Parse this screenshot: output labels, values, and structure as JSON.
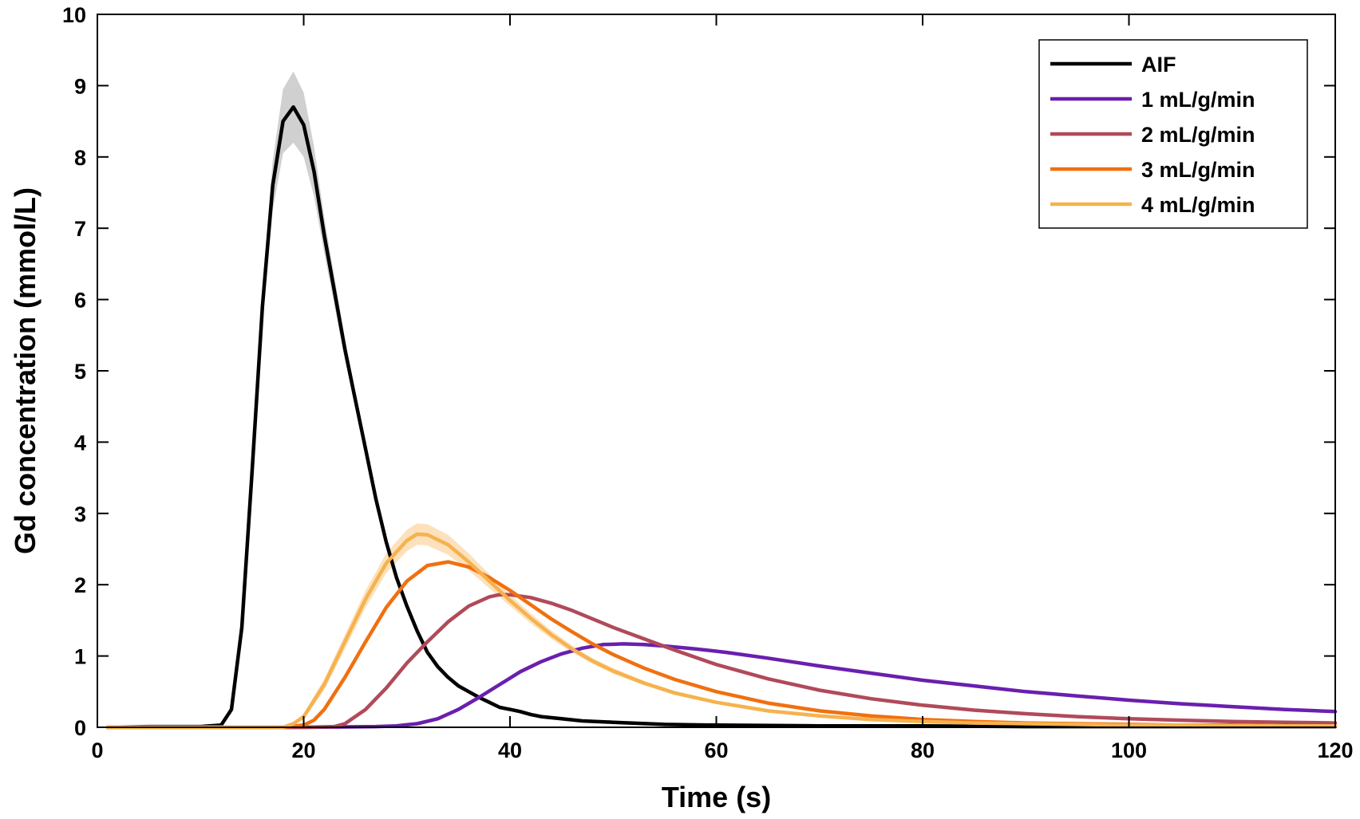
{
  "chart_data": {
    "type": "line",
    "title": "",
    "xlabel": "Time (s)",
    "ylabel": "Gd concentration (mmol/L)",
    "xlim": [
      0,
      120
    ],
    "ylim": [
      0,
      10
    ],
    "xticks": [
      0,
      20,
      40,
      60,
      80,
      100,
      120
    ],
    "yticks": [
      0,
      1,
      2,
      3,
      4,
      5,
      6,
      7,
      8,
      9,
      10
    ],
    "xtick_labels": [
      "0",
      "20",
      "40",
      "60",
      "80",
      "100",
      "120"
    ],
    "ytick_labels": [
      "0",
      "1",
      "2",
      "3",
      "4",
      "5",
      "6",
      "7",
      "8",
      "9",
      "10"
    ],
    "grid": false,
    "legend_position": "top-right",
    "series": [
      {
        "name": "AIF",
        "color": "#000000",
        "band_color": "#c8c8c8",
        "x": [
          1,
          5,
          10,
          12,
          13,
          14,
          15,
          16,
          17,
          18,
          19,
          20,
          21,
          22,
          23,
          24,
          25,
          26,
          27,
          28,
          29,
          30,
          31,
          32,
          33,
          34,
          35,
          36,
          37,
          38,
          39,
          40,
          41,
          42,
          43,
          45,
          47,
          50,
          55,
          60,
          70,
          80,
          90,
          100,
          110,
          120
        ],
        "y": [
          0,
          0.01,
          0.01,
          0.03,
          0.25,
          1.4,
          3.6,
          5.9,
          7.6,
          8.5,
          8.7,
          8.45,
          7.8,
          6.9,
          6.1,
          5.3,
          4.6,
          3.9,
          3.2,
          2.6,
          2.1,
          1.7,
          1.35,
          1.05,
          0.85,
          0.7,
          0.58,
          0.5,
          0.42,
          0.35,
          0.28,
          0.25,
          0.22,
          0.18,
          0.15,
          0.12,
          0.09,
          0.07,
          0.04,
          0.03,
          0.02,
          0.02,
          0.01,
          0.01,
          0.01,
          0.01
        ],
        "band": [
          0,
          0,
          0,
          0.02,
          0.05,
          0.1,
          0.15,
          0.25,
          0.35,
          0.45,
          0.5,
          0.45,
          0.35,
          0.25,
          0.2,
          0.15,
          0.12,
          0.1,
          0.08,
          0.06,
          0.05,
          0.04,
          0.03,
          0.03,
          0.02,
          0.02,
          0.02,
          0.02,
          0.02,
          0.02,
          0.02,
          0.02,
          0.02,
          0.02,
          0.02,
          0.02,
          0.02,
          0.02,
          0.02,
          0.02,
          0.02,
          0.02,
          0.02,
          0.02,
          0.02,
          0.02
        ]
      },
      {
        "name": "1 mL/g/min",
        "color": "#6a1fae",
        "x": [
          1,
          20,
          27,
          29,
          31,
          33,
          35,
          37,
          39,
          41,
          43,
          45,
          47,
          49,
          51,
          53,
          55,
          58,
          61,
          65,
          70,
          75,
          80,
          85,
          90,
          95,
          100,
          105,
          110,
          115,
          120
        ],
        "y": [
          0,
          0,
          0.01,
          0.02,
          0.05,
          0.12,
          0.25,
          0.42,
          0.6,
          0.78,
          0.92,
          1.03,
          1.11,
          1.16,
          1.17,
          1.16,
          1.14,
          1.1,
          1.05,
          0.97,
          0.86,
          0.76,
          0.66,
          0.58,
          0.5,
          0.44,
          0.38,
          0.33,
          0.29,
          0.25,
          0.22
        ]
      },
      {
        "name": "2 mL/g/min",
        "color": "#b04a5a",
        "x": [
          1,
          20,
          23,
          24,
          26,
          28,
          30,
          32,
          34,
          36,
          38,
          39,
          40,
          42,
          44,
          46,
          48,
          50,
          53,
          56,
          60,
          65,
          70,
          75,
          80,
          85,
          90,
          95,
          100,
          105,
          110,
          115,
          120
        ],
        "y": [
          0,
          0,
          0.01,
          0.05,
          0.25,
          0.55,
          0.9,
          1.2,
          1.48,
          1.7,
          1.83,
          1.86,
          1.86,
          1.82,
          1.74,
          1.64,
          1.52,
          1.4,
          1.24,
          1.08,
          0.88,
          0.68,
          0.52,
          0.4,
          0.31,
          0.24,
          0.19,
          0.15,
          0.12,
          0.1,
          0.08,
          0.07,
          0.06
        ]
      },
      {
        "name": "3 mL/g/min",
        "color": "#f07010",
        "x": [
          1,
          18,
          20,
          21,
          22,
          24,
          26,
          28,
          30,
          32,
          34,
          36,
          38,
          40,
          42,
          44,
          46,
          48,
          50,
          53,
          56,
          60,
          65,
          70,
          75,
          80,
          85,
          90,
          95,
          100,
          105,
          110,
          115,
          120
        ],
        "y": [
          0,
          0,
          0.03,
          0.1,
          0.25,
          0.7,
          1.2,
          1.68,
          2.05,
          2.27,
          2.32,
          2.25,
          2.1,
          1.92,
          1.72,
          1.52,
          1.34,
          1.17,
          1.02,
          0.83,
          0.67,
          0.5,
          0.34,
          0.23,
          0.16,
          0.11,
          0.08,
          0.06,
          0.05,
          0.04,
          0.03,
          0.03,
          0.02,
          0.02
        ]
      },
      {
        "name": "4 mL/g/min",
        "color": "#f6b24e",
        "band_color": "#fbdcb0",
        "x": [
          1,
          18,
          19,
          20,
          22,
          24,
          26,
          28,
          30,
          31,
          32,
          34,
          36,
          38,
          40,
          42,
          44,
          46,
          48,
          50,
          53,
          56,
          60,
          65,
          70,
          75,
          80,
          85,
          90,
          95,
          100,
          105,
          110,
          115,
          120
        ],
        "y": [
          0,
          0,
          0.05,
          0.15,
          0.6,
          1.2,
          1.8,
          2.3,
          2.62,
          2.71,
          2.7,
          2.56,
          2.32,
          2.05,
          1.78,
          1.53,
          1.3,
          1.1,
          0.93,
          0.79,
          0.62,
          0.48,
          0.35,
          0.23,
          0.16,
          0.11,
          0.08,
          0.06,
          0.05,
          0.04,
          0.03,
          0.03,
          0.02,
          0.02,
          0.02
        ],
        "band": [
          0,
          0,
          0.02,
          0.04,
          0.08,
          0.1,
          0.12,
          0.14,
          0.15,
          0.15,
          0.15,
          0.14,
          0.12,
          0.1,
          0.08,
          0.07,
          0.06,
          0.05,
          0.04,
          0.04,
          0.03,
          0.03,
          0.02,
          0.02,
          0.02,
          0.02,
          0.02,
          0.02,
          0.02,
          0.02,
          0.02,
          0.02,
          0.02,
          0.02,
          0.02
        ]
      }
    ]
  }
}
